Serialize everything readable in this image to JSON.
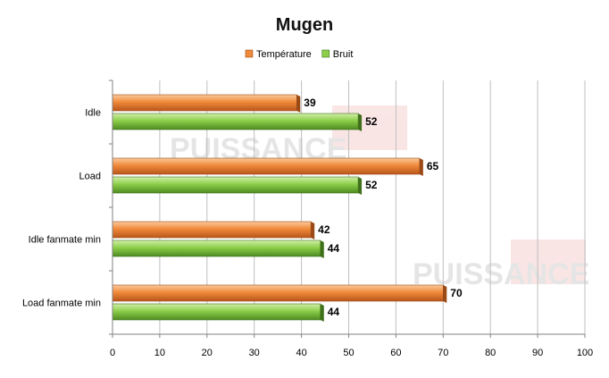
{
  "chart_data": {
    "type": "bar",
    "orientation": "horizontal",
    "title": "Mugen",
    "categories": [
      "Idle",
      "Load",
      "Idle fanmate  min",
      "Load fanmate  min"
    ],
    "series": [
      {
        "name": "Température",
        "values": [
          39,
          65,
          42,
          70
        ],
        "color": "#f08a3a"
      },
      {
        "name": "Bruit",
        "values": [
          52,
          52,
          44,
          44
        ],
        "color": "#8ccf4a"
      }
    ],
    "xlim": [
      0,
      100
    ],
    "x_ticks": [
      0,
      10,
      20,
      30,
      40,
      50,
      60,
      70,
      80,
      90,
      100
    ],
    "grid": true,
    "legend_position": "top",
    "data_labels": true,
    "watermark_text": "PUISSANCE PC"
  }
}
